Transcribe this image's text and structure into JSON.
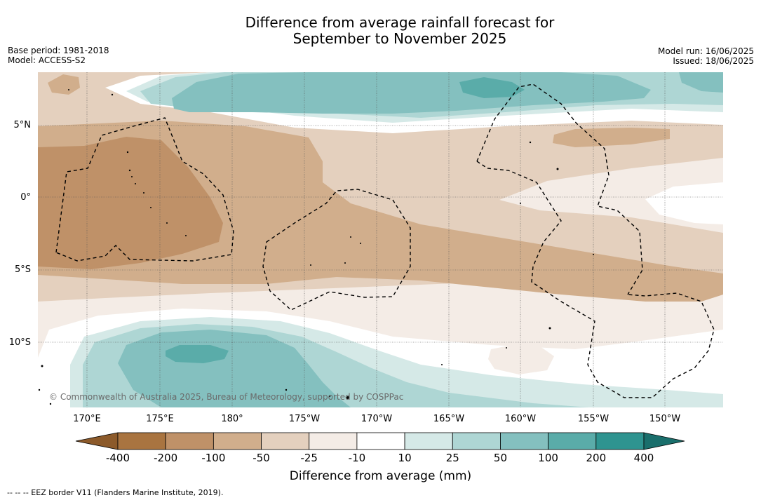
{
  "title_line1": "Difference from average rainfall forecast for",
  "title_line2": "September to November 2025",
  "base_period": "Base period: 1981-2018",
  "model": "Model: ACCESS-S2",
  "model_run": "Model run: 16/06/2025",
  "issued": "Issued: 18/06/2025",
  "lat_labels": [
    "5°N",
    "0°",
    "5°S",
    "10°S"
  ],
  "lon_labels": [
    "170°E",
    "175°E",
    "180°",
    "175°W",
    "170°W",
    "165°W",
    "160°W",
    "155°W",
    "150°W"
  ],
  "copyright": "© Commonwealth of Australia 2025, Bureau of Meteorology, supported by COSPPac",
  "colorbar": {
    "ticks": [
      "-400",
      "-200",
      "-100",
      "-50",
      "-25",
      "-10",
      "10",
      "25",
      "50",
      "100",
      "200",
      "400"
    ],
    "colors": [
      "#8c5a2a",
      "#a97440",
      "#bf9168",
      "#d1ae8c",
      "#e4d0be",
      "#f4ece6",
      "#ffffff",
      "#d5e9e7",
      "#aed6d4",
      "#84c0bf",
      "#5aaca9",
      "#2e9490",
      "#1a6f6c"
    ],
    "title": "Difference from average (mm)"
  },
  "legend_footer": "--  --  -- EEZ border V11 (Flanders Marine Institute, 2019)."
}
